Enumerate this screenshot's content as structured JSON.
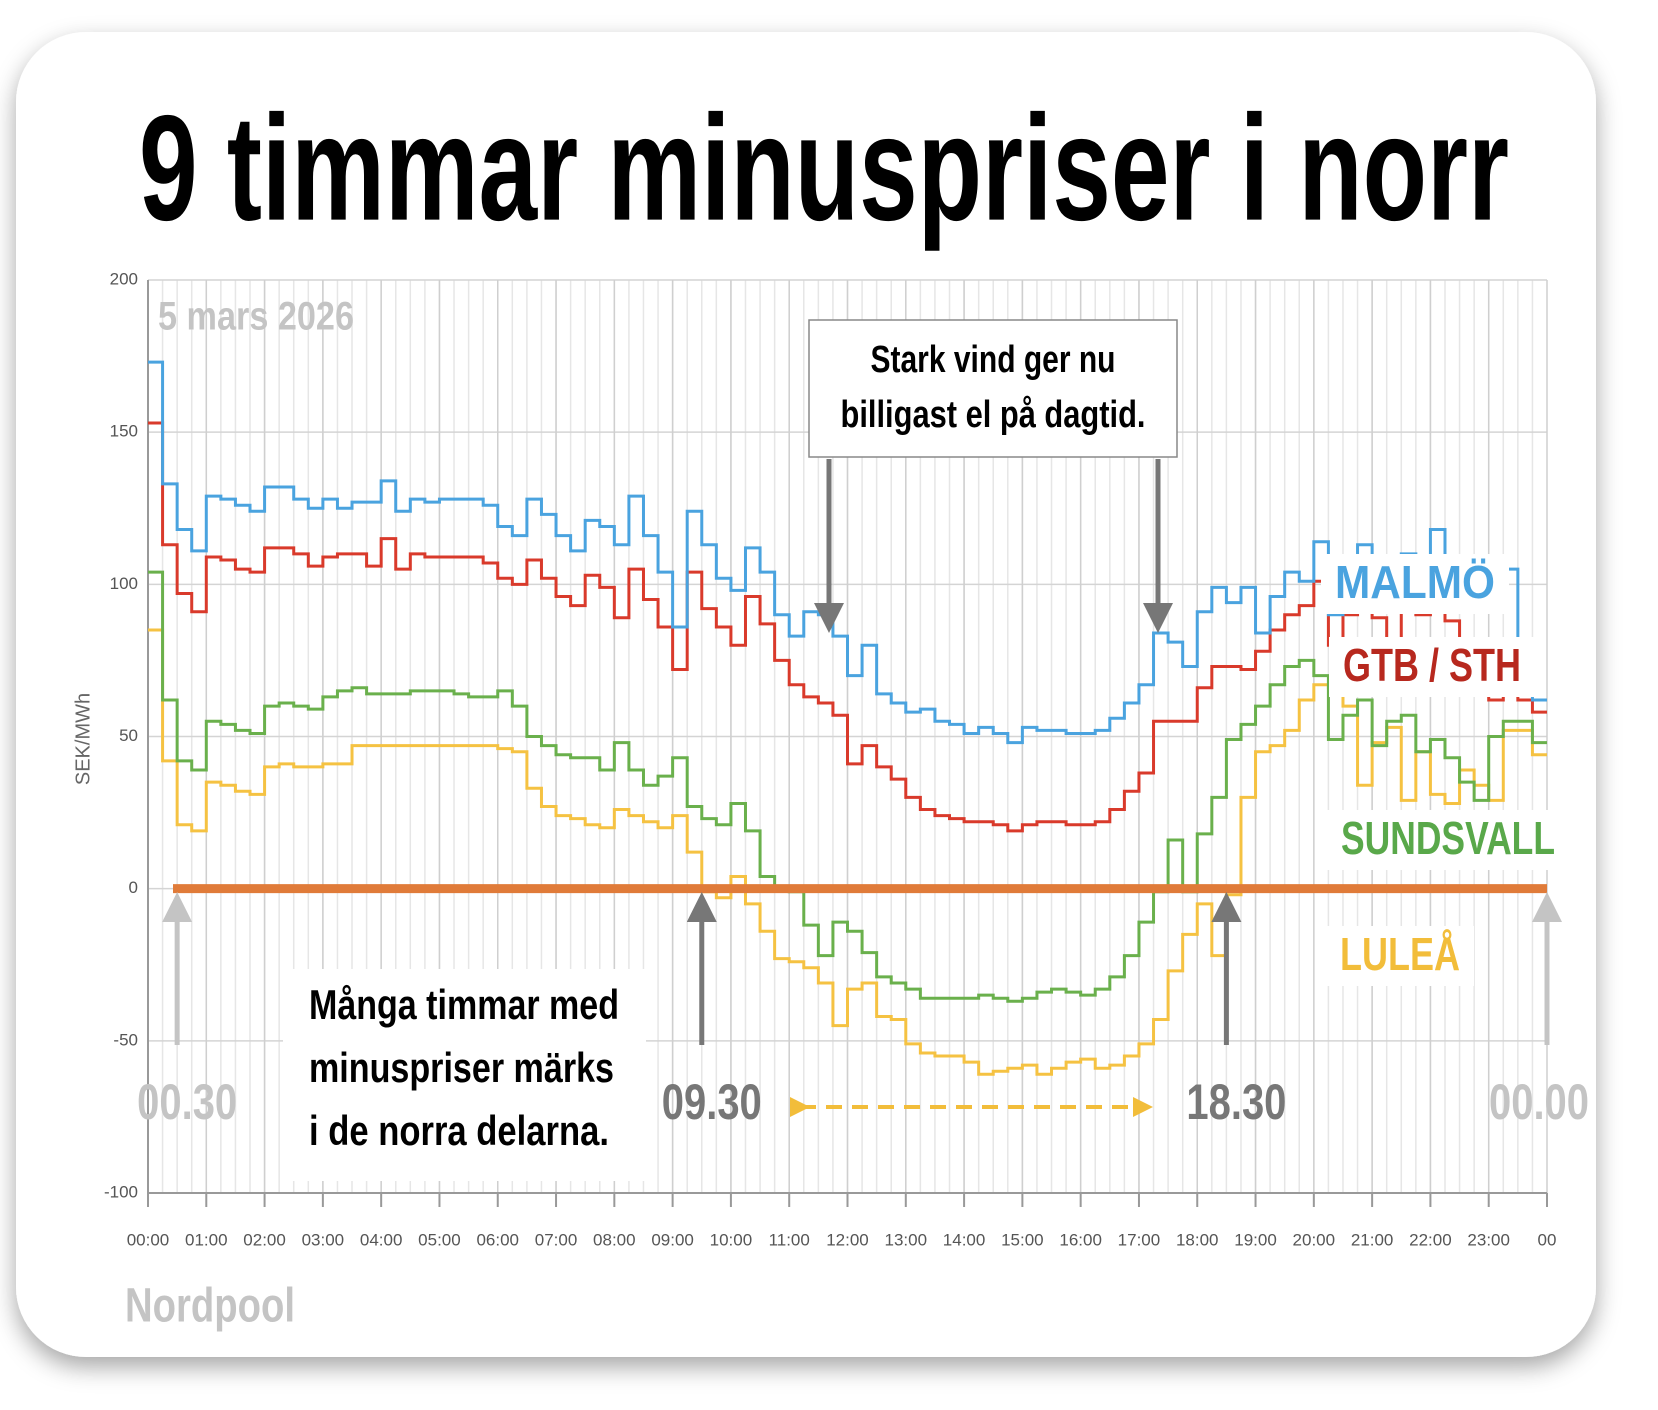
{
  "chart_data": {
    "type": "line",
    "step": "post",
    "title": "9 timmar minuspriser i norr",
    "subtitle": "5 mars 2026",
    "source": "Nordpool",
    "ylabel": "SEK/MWh",
    "xlim": [
      0,
      24
    ],
    "xticks": [
      {
        "value": 0,
        "label": "00:00"
      },
      {
        "value": 1,
        "label": "01:00"
      },
      {
        "value": 2,
        "label": "02:00"
      },
      {
        "value": 3,
        "label": "03:00"
      },
      {
        "value": 4,
        "label": "04:00"
      },
      {
        "value": 5,
        "label": "05:00"
      },
      {
        "value": 6,
        "label": "06:00"
      },
      {
        "value": 7,
        "label": "07:00"
      },
      {
        "value": 8,
        "label": "08:00"
      },
      {
        "value": 9,
        "label": "09:00"
      },
      {
        "value": 10,
        "label": "10:00"
      },
      {
        "value": 11,
        "label": "11:00"
      },
      {
        "value": 12,
        "label": "12:00"
      },
      {
        "value": 13,
        "label": "13:00"
      },
      {
        "value": 14,
        "label": "14:00"
      },
      {
        "value": 15,
        "label": "15:00"
      },
      {
        "value": 16,
        "label": "16:00"
      },
      {
        "value": 17,
        "label": "17:00"
      },
      {
        "value": 18,
        "label": "18:00"
      },
      {
        "value": 19,
        "label": "19:00"
      },
      {
        "value": 20,
        "label": "20:00"
      },
      {
        "value": 21,
        "label": "21:00"
      },
      {
        "value": 22,
        "label": "22:00"
      },
      {
        "value": 23,
        "label": "23:00"
      },
      {
        "value": 24,
        "label": "00"
      }
    ],
    "ylim": [
      -100,
      200
    ],
    "yticks": [
      -100,
      -50,
      0,
      50,
      100,
      150,
      200
    ],
    "grid": true,
    "hline": {
      "value": 0,
      "color": "#e07b39"
    },
    "x": [
      0,
      0.25,
      0.5,
      0.75,
      1,
      1.25,
      1.5,
      1.75,
      2,
      2.25,
      2.5,
      2.75,
      3,
      3.25,
      3.5,
      3.75,
      4,
      4.25,
      4.5,
      4.75,
      5,
      5.25,
      5.5,
      5.75,
      6,
      6.25,
      6.5,
      6.75,
      7,
      7.25,
      7.5,
      7.75,
      8,
      8.25,
      8.5,
      8.75,
      9,
      9.25,
      9.5,
      9.75,
      10,
      10.25,
      10.5,
      10.75,
      11,
      11.25,
      11.5,
      11.75,
      12,
      12.25,
      12.5,
      12.75,
      13,
      13.25,
      13.5,
      13.75,
      14,
      14.25,
      14.5,
      14.75,
      15,
      15.25,
      15.5,
      15.75,
      16,
      16.25,
      16.5,
      16.75,
      17,
      17.25,
      17.5,
      17.75,
      18,
      18.25,
      18.5,
      18.75,
      19,
      19.25,
      19.5,
      19.75,
      20,
      20.25,
      20.5,
      20.75,
      21,
      21.25,
      21.5,
      21.75,
      22,
      22.25,
      22.5,
      22.75,
      23,
      23.25,
      23.5,
      23.75
    ],
    "series": [
      {
        "name": "MALMÖ",
        "color": "#4aa3df",
        "label_color": "#4aa3df",
        "values": [
          173,
          133,
          118,
          111,
          129,
          128,
          126,
          124,
          132,
          132,
          128,
          125,
          128,
          125,
          127,
          127,
          134,
          124,
          128,
          127,
          128,
          128,
          128,
          126,
          119,
          116,
          128,
          123,
          116,
          111,
          121,
          119,
          113,
          129,
          116,
          104,
          86,
          124,
          113,
          102,
          98,
          112,
          104,
          90,
          83,
          91,
          90,
          83,
          70,
          80,
          64,
          61,
          58,
          59,
          55,
          54,
          51,
          53,
          51,
          48,
          53,
          52,
          52,
          51,
          51,
          52,
          56,
          61,
          67,
          84,
          81,
          73,
          91,
          99,
          94,
          99,
          84,
          96,
          104,
          101,
          114,
          90,
          105,
          113,
          105,
          98,
          110,
          107,
          118,
          106,
          102,
          97,
          100,
          105,
          72,
          62
        ]
      },
      {
        "name": "GTB / STH",
        "color": "#d93a2b",
        "label_color": "#b7281e",
        "values": [
          153,
          113,
          97,
          91,
          109,
          108,
          105,
          104,
          112,
          112,
          110,
          106,
          109,
          110,
          110,
          106,
          115,
          105,
          110,
          109,
          109,
          109,
          109,
          107,
          102,
          100,
          108,
          102,
          96,
          93,
          103,
          99,
          89,
          105,
          95,
          86,
          72,
          104,
          92,
          86,
          80,
          96,
          87,
          75,
          67,
          63,
          61,
          57,
          41,
          47,
          40,
          36,
          30,
          26,
          24,
          23,
          22,
          22,
          21,
          19,
          21,
          22,
          22,
          21,
          21,
          22,
          26,
          32,
          38,
          55,
          55,
          55,
          66,
          73,
          73,
          72,
          78,
          85,
          90,
          93,
          101,
          80,
          90,
          98,
          89,
          82,
          93,
          90,
          97,
          88,
          80,
          70,
          62,
          76,
          62,
          58
        ]
      },
      {
        "name": "SUNDSVALL",
        "color": "#6ab04c",
        "label_color": "#59a84a",
        "values": [
          104,
          62,
          42,
          39,
          55,
          54,
          52,
          51,
          60,
          61,
          60,
          59,
          63,
          65,
          66,
          64,
          64,
          64,
          65,
          65,
          65,
          64,
          63,
          63,
          65,
          60,
          50,
          47,
          44,
          43,
          43,
          39,
          48,
          39,
          34,
          37,
          43,
          27,
          23,
          21,
          28,
          19,
          4,
          0,
          -1,
          -12,
          -22,
          -11,
          -14,
          -21,
          -29,
          -31,
          -33,
          -36,
          -36,
          -36,
          -36,
          -35,
          -36,
          -37,
          -36,
          -34,
          -33,
          -34,
          -35,
          -33,
          -29,
          -22,
          -11,
          -1,
          16,
          -1,
          18,
          30,
          49,
          54,
          60,
          67,
          73,
          75,
          70,
          49,
          57,
          62,
          47,
          55,
          57,
          45,
          49,
          43,
          35,
          29,
          50,
          55,
          55,
          48
        ]
      },
      {
        "name": "LULEÅ",
        "color": "#f5c242",
        "label_color": "#f2bd3a",
        "values": [
          85,
          42,
          21,
          19,
          35,
          34,
          32,
          31,
          40,
          41,
          40,
          40,
          41,
          41,
          47,
          47,
          47,
          47,
          47,
          47,
          47,
          47,
          47,
          47,
          46,
          45,
          33,
          27,
          24,
          23,
          21,
          20,
          26,
          24,
          22,
          20,
          24,
          12,
          -1,
          -3,
          4,
          -5,
          -14,
          -23,
          -24,
          -26,
          -31,
          -45,
          -33,
          -31,
          -42,
          -43,
          -51,
          -54,
          -55,
          -55,
          -57,
          -61,
          -60,
          -59,
          -58,
          -61,
          -59,
          -57,
          -56,
          -59,
          -58,
          -55,
          -51,
          -43,
          -27,
          -15,
          -5,
          -22,
          -2,
          30,
          45,
          47,
          52,
          62,
          67,
          66,
          60,
          34,
          48,
          53,
          29,
          45,
          31,
          28,
          39,
          34,
          29,
          52,
          52,
          44
        ]
      }
    ],
    "callouts": [
      {
        "lines": [
          "Stark vind ger nu",
          "billigast el på dagtid."
        ]
      },
      {
        "lines": [
          "Många timmar med",
          "minuspriser märks",
          "i de norra delarna."
        ]
      }
    ],
    "time_markers": [
      {
        "label": "00.30",
        "x": 0.5
      },
      {
        "label": "09.30",
        "x": 9.5
      },
      {
        "label": "18.30",
        "x": 18.5
      },
      {
        "label": "00.00",
        "x": 24
      }
    ]
  }
}
